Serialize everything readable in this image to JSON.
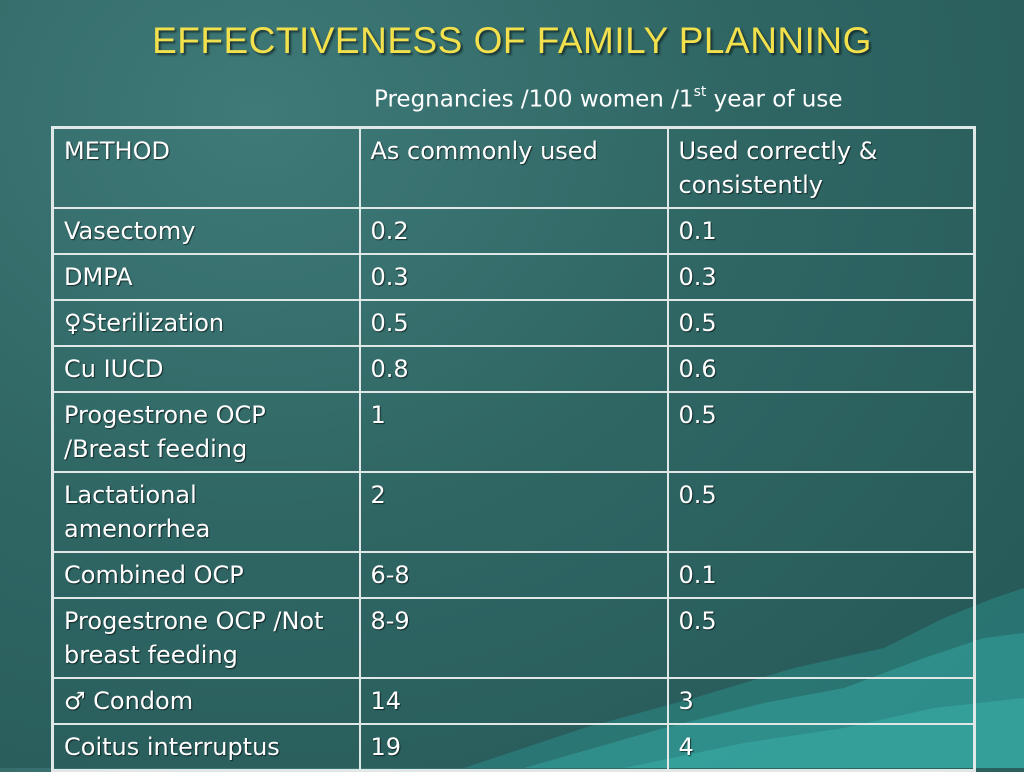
{
  "slide": {
    "title": "EFFECTIVENESS OF FAMILY PLANNING",
    "subtitle_main": "Pregnancies /100 women /1",
    "subtitle_sup": "st",
    "subtitle_tail": " year of use"
  },
  "table": {
    "headers": [
      "METHOD",
      "As commonly used",
      "Used correctly & consistently"
    ],
    "rows": [
      {
        "method": "Vasectomy",
        "common": "0.2",
        "correct": "0.1"
      },
      {
        "method": "DMPA",
        "common": "0.3",
        "correct": "0.3"
      },
      {
        "method": "♀Sterilization",
        "common": "0.5",
        "correct": "0.5"
      },
      {
        "method": "Cu IUCD",
        "common": "0.8",
        "correct": "0.6"
      },
      {
        "method": "Progestrone OCP /Breast feeding",
        "common": "1",
        "correct": "0.5"
      },
      {
        "method": "Lactational amenorrhea",
        "common": "2",
        "correct": "0.5"
      },
      {
        "method": "Combined OCP",
        "common": "6-8",
        "correct": "0.1"
      },
      {
        "method": "Progestrone OCP /Not breast feeding",
        "common": "8-9",
        "correct": "0.5"
      },
      {
        "method": "♂ Condom",
        "common": "14",
        "correct": "3"
      },
      {
        "method": "Coitus interruptus",
        "common": "19",
        "correct": "4"
      }
    ]
  }
}
